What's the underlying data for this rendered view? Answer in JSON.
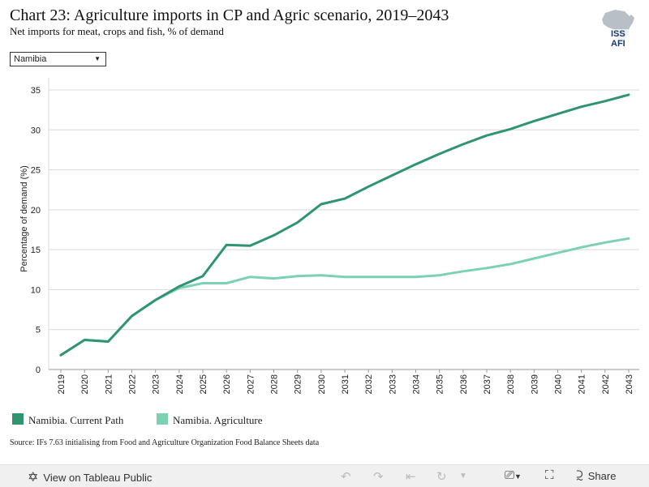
{
  "header": {
    "title": "Chart 23: Agriculture imports in CP and Agric scenario, 2019–2043",
    "subtitle": "Net imports for meat, crops and fish, % of demand",
    "logo_text": "ISS AFI"
  },
  "filter": {
    "selected": "Namibia"
  },
  "chart_data": {
    "type": "line",
    "title": "Chart 23: Agriculture imports in CP and Agric scenario, 2019–2043",
    "subtitle": "Net imports for meat, crops and fish, % of demand",
    "xlabel": "",
    "ylabel": "Percentage of demand (%)",
    "ylim": [
      0,
      35
    ],
    "yticks": [
      0,
      5,
      10,
      15,
      20,
      25,
      30,
      35
    ],
    "grid": true,
    "legend_position": "bottom-left",
    "x": [
      "2019",
      "2020",
      "2021",
      "2022",
      "2023",
      "2024",
      "2025",
      "2026",
      "2027",
      "2028",
      "2029",
      "2030",
      "2031",
      "2032",
      "2033",
      "2034",
      "2035",
      "2036",
      "2037",
      "2038",
      "2039",
      "2040",
      "2041",
      "2042",
      "2043"
    ],
    "series": [
      {
        "name": "Namibia. Current Path",
        "color": "#2f9470",
        "values": [
          1.8,
          3.7,
          3.5,
          6.7,
          8.7,
          10.4,
          11.7,
          15.6,
          15.5,
          16.8,
          18.4,
          20.7,
          21.4,
          22.9,
          24.3,
          25.7,
          27.0,
          28.2,
          29.3,
          30.1,
          31.1,
          32.0,
          32.9,
          33.6,
          34.4
        ]
      },
      {
        "name": "Namibia. Agriculture",
        "color": "#7dd1b3",
        "values": [
          1.8,
          3.7,
          3.5,
          6.7,
          8.7,
          10.2,
          10.8,
          10.8,
          11.6,
          11.4,
          11.7,
          11.8,
          11.6,
          11.6,
          11.6,
          11.6,
          11.8,
          12.3,
          12.7,
          13.2,
          13.9,
          14.6,
          15.3,
          15.9,
          16.4
        ]
      }
    ]
  },
  "source": "Source: IFs 7.63 initialising from Food and Agriculture Organization Food Balance Sheets data",
  "footer": {
    "view_label": "View on Tableau Public",
    "share_label": "Share",
    "icons": [
      "tableau-icon",
      "undo-icon",
      "redo-icon",
      "revert-icon",
      "refresh-icon",
      "download-icon",
      "fullscreen-icon",
      "share-icon"
    ]
  }
}
